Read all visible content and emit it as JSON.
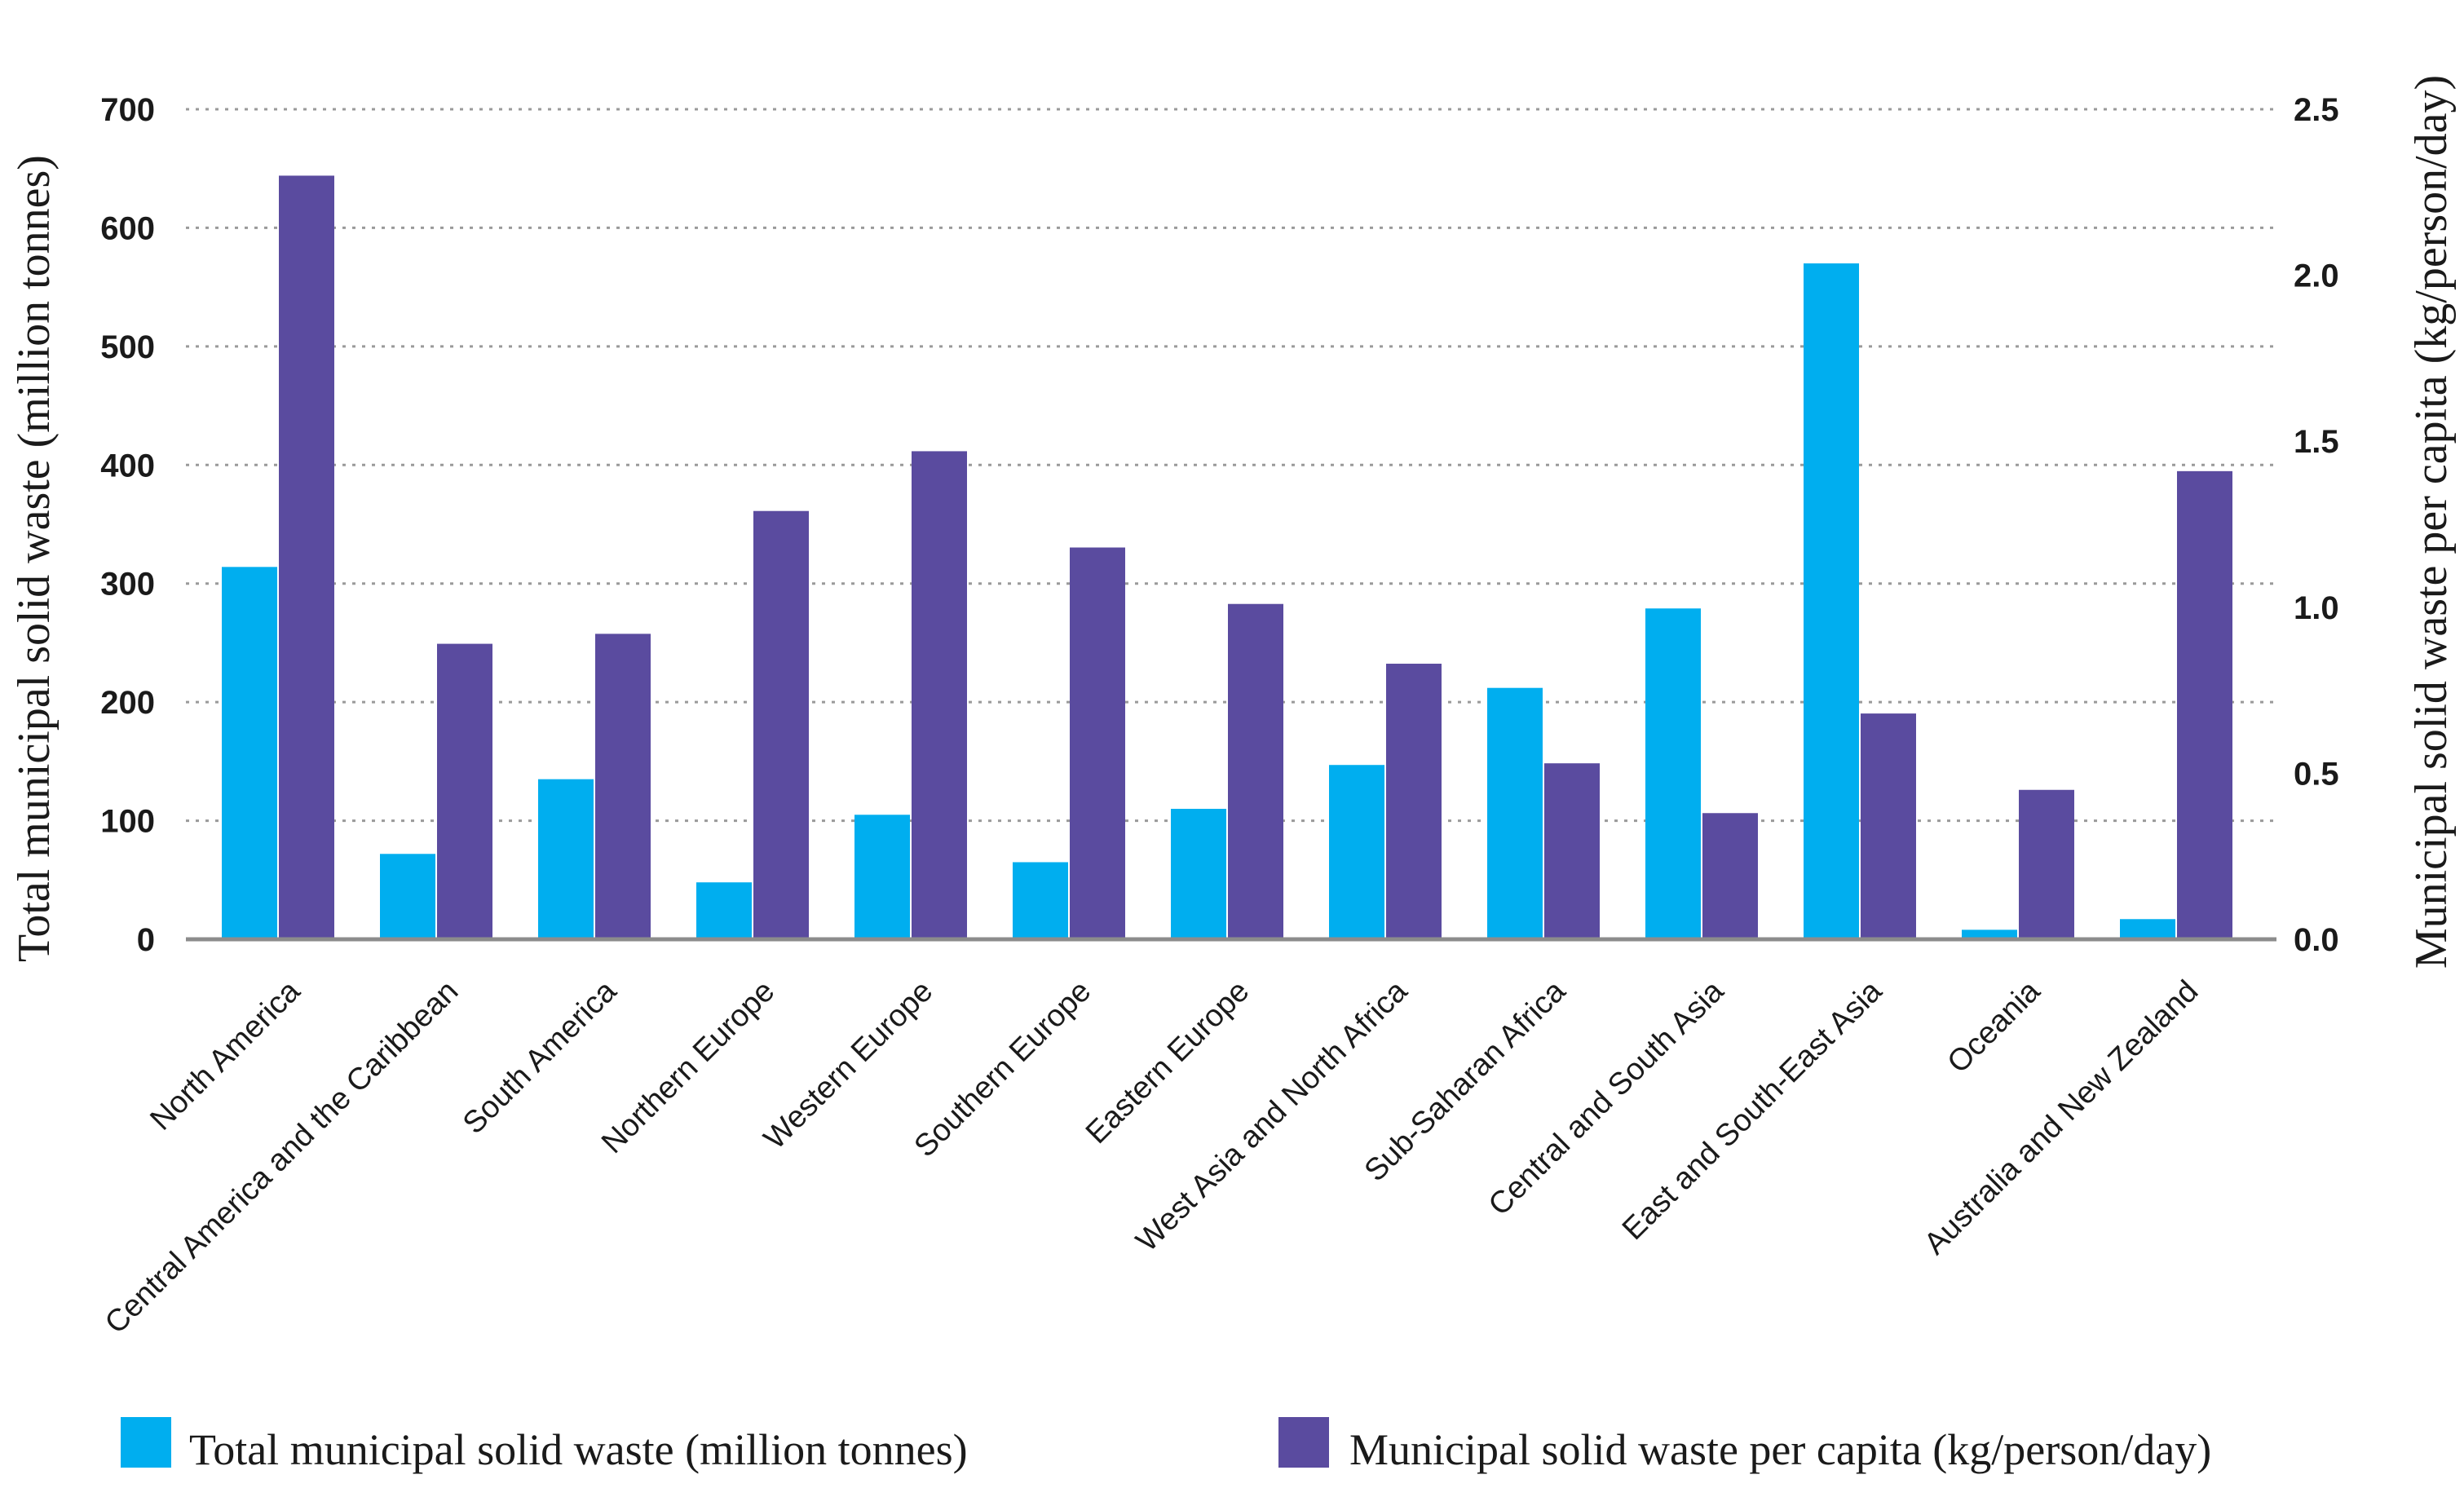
{
  "chart_data": {
    "type": "bar",
    "title": "",
    "categories": [
      "North America",
      "Central America and the Caribbean",
      "South America",
      "Northern Europe",
      "Western Europe",
      "Southern Europe",
      "Eastern Europe",
      "West Asia and North Africa",
      "Sub-Saharan Africa",
      "Central and South Asia",
      "East and South-East Asia",
      "Oceania",
      "Australia and New Zealand"
    ],
    "series": [
      {
        "name": "Total municipal solid waste (million tonnes)",
        "axis": "left",
        "color": "#00AEEF",
        "values": [
          314,
          72,
          135,
          48,
          105,
          65,
          110,
          147,
          212,
          279,
          570,
          8,
          17
        ]
      },
      {
        "name": "Municipal solid waste per capita (kg/person/day)",
        "axis": "right",
        "color": "#5A4B9F",
        "values": [
          2.3,
          0.89,
          0.92,
          1.29,
          1.47,
          1.18,
          1.01,
          0.83,
          0.53,
          0.38,
          0.68,
          0.45,
          1.41
        ]
      }
    ],
    "ylabel": "Total municipal solid waste  (million tonnes)",
    "y2label": "Municipal solid waste per capita (kg/person/day)",
    "ylim": [
      0,
      700
    ],
    "y2lim": [
      0,
      2.5
    ],
    "yticks": [
      "0",
      "100",
      "200",
      "300",
      "400",
      "500",
      "600",
      "700"
    ],
    "y2ticks": [
      "0.0",
      "0.5",
      "1.0",
      "1.5",
      "2.0",
      "2.5"
    ],
    "grid": true,
    "legend_position": "bottom"
  }
}
